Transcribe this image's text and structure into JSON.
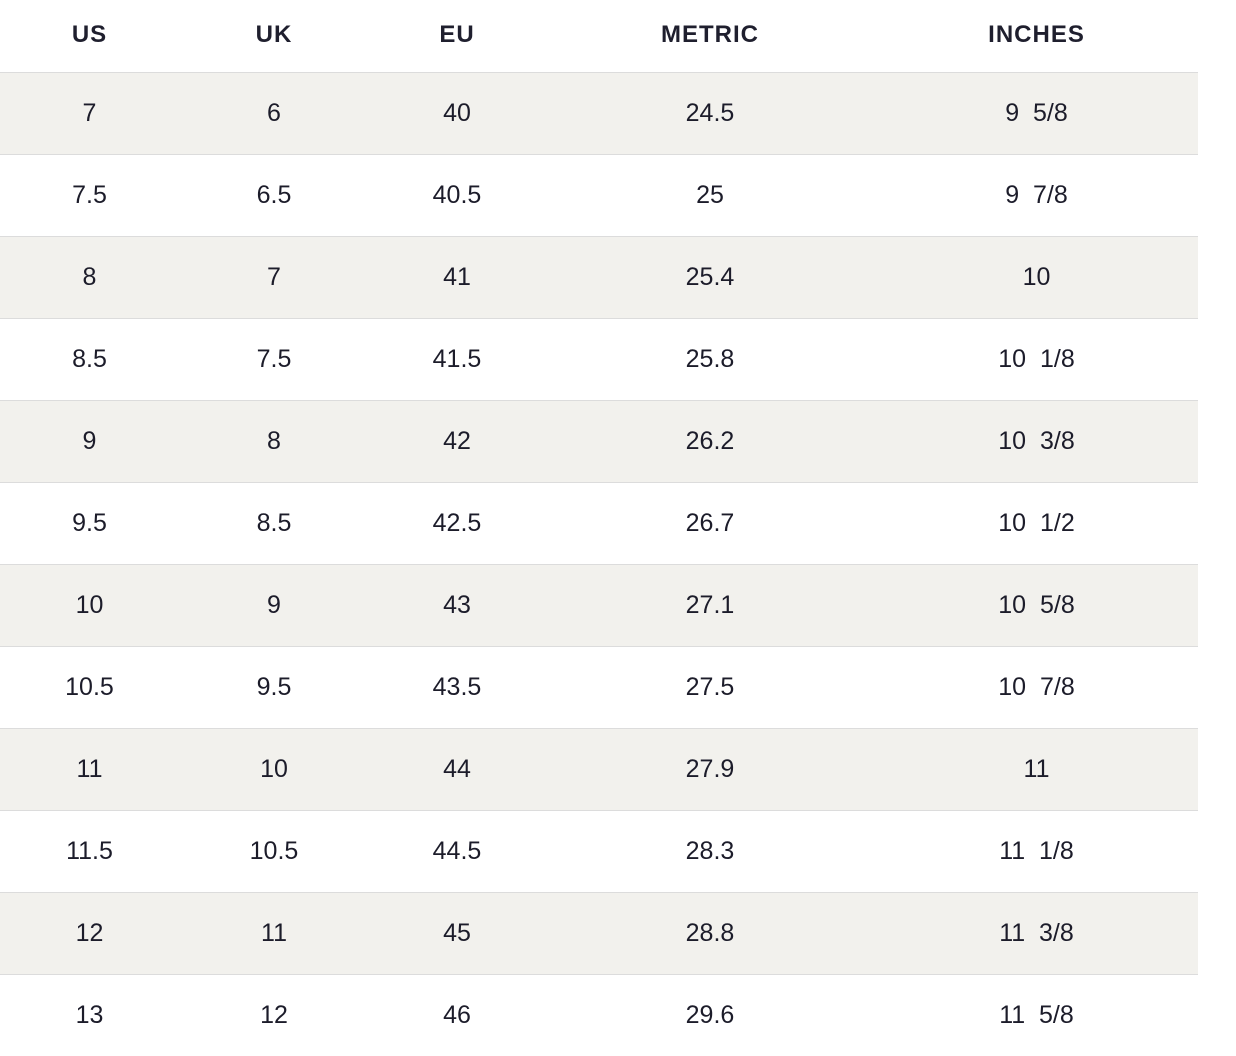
{
  "table": {
    "headers": [
      "US",
      "UK",
      "EU",
      "METRIC",
      "INCHES"
    ],
    "rows": [
      [
        "7",
        "6",
        "40",
        "24.5",
        "9  5/8"
      ],
      [
        "7.5",
        "6.5",
        "40.5",
        "25",
        "9  7/8"
      ],
      [
        "8",
        "7",
        "41",
        "25.4",
        "10"
      ],
      [
        "8.5",
        "7.5",
        "41.5",
        "25.8",
        "10  1/8"
      ],
      [
        "9",
        "8",
        "42",
        "26.2",
        "10  3/8"
      ],
      [
        "9.5",
        "8.5",
        "42.5",
        "26.7",
        "10  1/2"
      ],
      [
        "10",
        "9",
        "43",
        "27.1",
        "10  5/8"
      ],
      [
        "10.5",
        "9.5",
        "43.5",
        "27.5",
        "10  7/8"
      ],
      [
        "11",
        "10",
        "44",
        "27.9",
        "11"
      ],
      [
        "11.5",
        "10.5",
        "44.5",
        "28.3",
        "11  1/8"
      ],
      [
        "12",
        "11",
        "45",
        "28.8",
        "11  3/8"
      ],
      [
        "13",
        "12",
        "46",
        "29.6",
        "11  5/8"
      ]
    ]
  },
  "colors": {
    "stripe": "#f2f1ed",
    "text": "#1c1c2a",
    "divider": "#dcdcdc"
  }
}
